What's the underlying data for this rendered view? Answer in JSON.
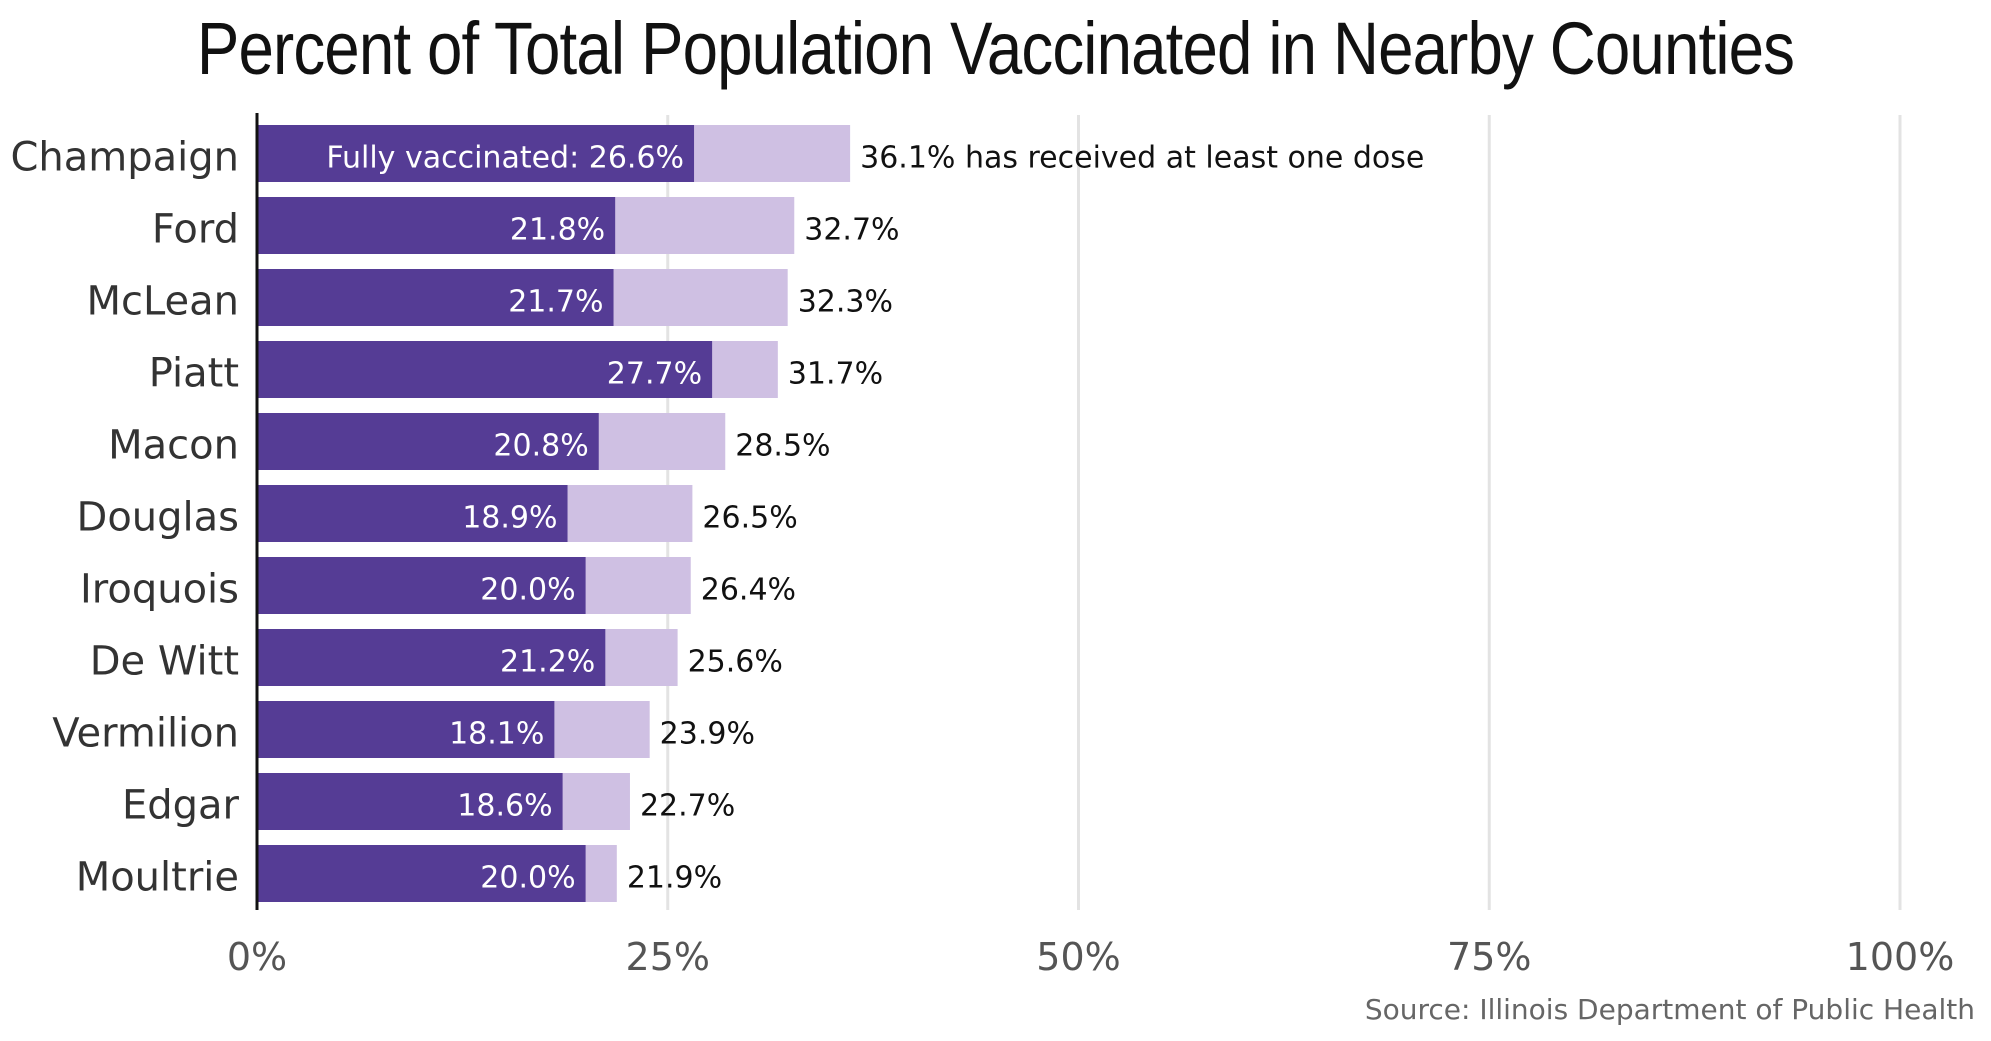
{
  "chart_data": {
    "type": "bar",
    "orientation": "horizontal",
    "title": "Percent of Total Population Vaccinated in Nearby Counties",
    "source": "Source: Illinois Department of Public Health",
    "categories": [
      "Champaign",
      "Ford",
      "McLean",
      "Piatt",
      "Macon",
      "Douglas",
      "Iroquois",
      "De Witt",
      "Vermilion",
      "Edgar",
      "Moultrie"
    ],
    "series": [
      {
        "name": "Fully vaccinated",
        "color": "#553c95",
        "values": [
          26.6,
          21.8,
          21.7,
          27.7,
          20.8,
          18.9,
          20.0,
          21.2,
          18.1,
          18.6,
          20.0
        ],
        "labels": [
          "Fully vaccinated: 26.6%",
          "21.8%",
          "21.7%",
          "27.7%",
          "20.8%",
          "18.9%",
          "20.0%",
          "21.2%",
          "18.1%",
          "18.6%",
          "20.0%"
        ]
      },
      {
        "name": "has received at least one dose",
        "color": "#cfc0e3",
        "values": [
          36.1,
          32.7,
          32.3,
          31.7,
          28.5,
          26.5,
          26.4,
          25.6,
          23.9,
          22.7,
          21.9
        ],
        "labels": [
          "36.1% has received at least one dose",
          "32.7%",
          "32.3%",
          "31.7%",
          "28.5%",
          "26.5%",
          "26.4%",
          "25.6%",
          "23.9%",
          "22.7%",
          "21.9%"
        ]
      }
    ],
    "x_ticks": [
      0,
      25,
      50,
      75,
      100
    ],
    "x_tick_labels": [
      "0%",
      "25%",
      "50%",
      "75%",
      "100%"
    ],
    "xlim": [
      0,
      100
    ],
    "grid": true,
    "legend": "none"
  }
}
